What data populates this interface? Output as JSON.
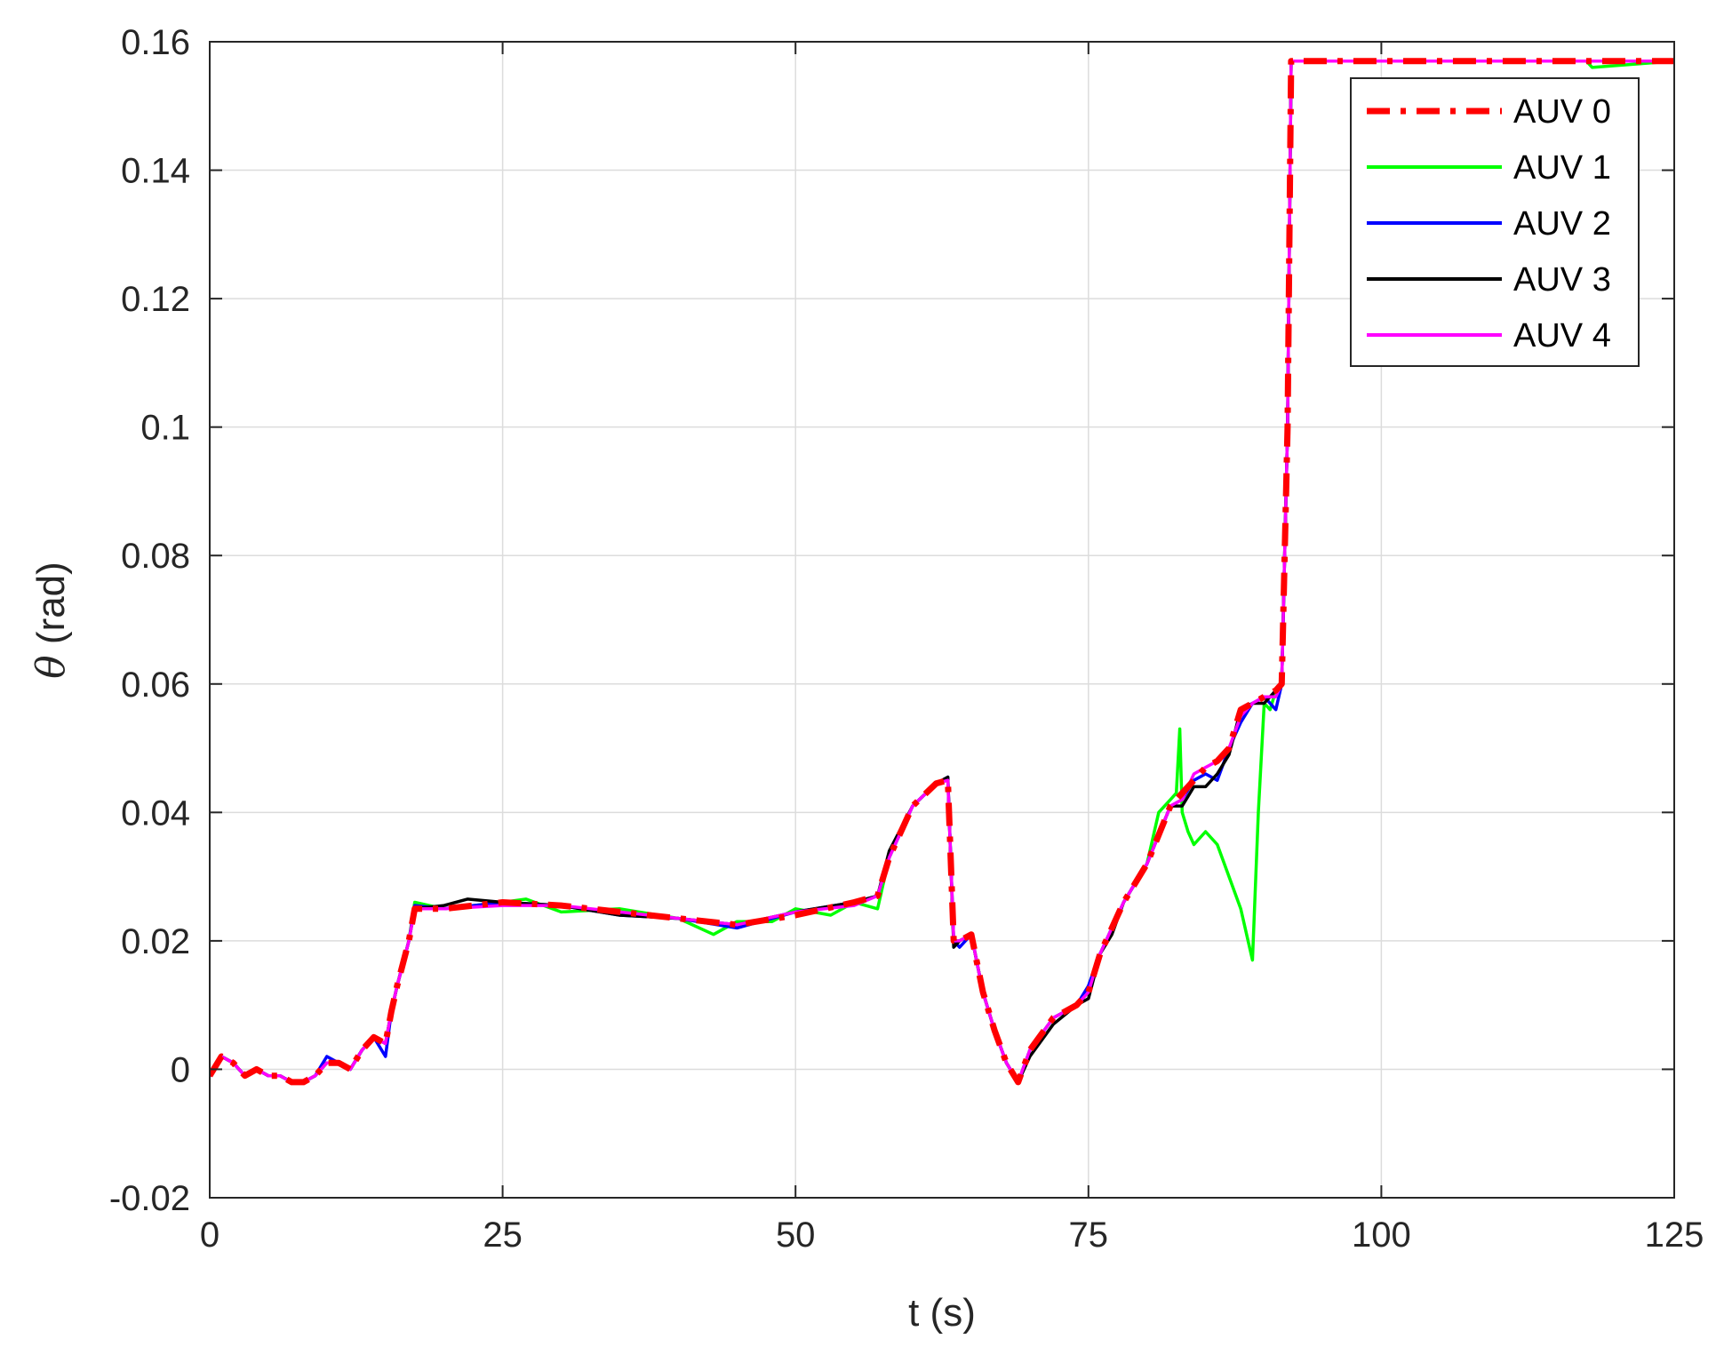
{
  "chart_data": {
    "type": "line",
    "xlabel": "t (s)",
    "ylabel_symbol": "θ",
    "ylabel_unit": " (rad)",
    "xlim": [
      0,
      125
    ],
    "ylim": [
      -0.02,
      0.16
    ],
    "xticks": [
      0,
      25,
      50,
      75,
      100,
      125
    ],
    "xtick_labels": [
      "0",
      "25",
      "50",
      "75",
      "100",
      "125"
    ],
    "yticks": [
      -0.02,
      0,
      0.02,
      0.04,
      0.06,
      0.08,
      0.1,
      0.12,
      0.14,
      0.16
    ],
    "ytick_labels": [
      "-0.02",
      "0",
      "0.02",
      "0.04",
      "0.06",
      "0.08",
      "0.1",
      "0.12",
      "0.14",
      "0.16"
    ],
    "grid": true,
    "legend_position": "top-right",
    "series": [
      {
        "name": "AUV 0",
        "color": "#ff0000",
        "style": "dashdot",
        "x": [
          0,
          1,
          2,
          3,
          4,
          5,
          6,
          7,
          8,
          9,
          10,
          11,
          12,
          13,
          14,
          15,
          15.5,
          16,
          17,
          17.5,
          20,
          25,
          30,
          35,
          40,
          45,
          50,
          55,
          57,
          58,
          60,
          62,
          63,
          63.5,
          64,
          65,
          66,
          67,
          68,
          69,
          70,
          72,
          74,
          75,
          76,
          77,
          78,
          80,
          82,
          83,
          84,
          85,
          86,
          87,
          88,
          89,
          90,
          91,
          91.5,
          92,
          92.3,
          95,
          100,
          110,
          120,
          125
        ],
        "y": [
          -0.001,
          0.002,
          0.001,
          -0.001,
          0.0,
          -0.001,
          -0.001,
          -0.002,
          -0.002,
          -0.001,
          0.001,
          0.001,
          0.0,
          0.003,
          0.005,
          0.004,
          0.009,
          0.013,
          0.02,
          0.025,
          0.025,
          0.026,
          0.0255,
          0.0245,
          0.0235,
          0.0225,
          0.024,
          0.026,
          0.027,
          0.033,
          0.041,
          0.0445,
          0.045,
          0.02,
          0.02,
          0.021,
          0.012,
          0.006,
          0.001,
          -0.002,
          0.003,
          0.008,
          0.01,
          0.012,
          0.018,
          0.022,
          0.026,
          0.032,
          0.041,
          0.043,
          0.045,
          0.047,
          0.048,
          0.05,
          0.056,
          0.057,
          0.058,
          0.059,
          0.06,
          0.1,
          0.157,
          0.157,
          0.157,
          0.157,
          0.157,
          0.157
        ]
      },
      {
        "name": "AUV 1",
        "color": "#00ff00",
        "style": "solid",
        "x": [
          0,
          1,
          2,
          3,
          4,
          5,
          6,
          7,
          8,
          9,
          10,
          11,
          12,
          13,
          14,
          15,
          15.5,
          16,
          17,
          17.5,
          20,
          25,
          27,
          30,
          35,
          40,
          43,
          45,
          48,
          50,
          53,
          55,
          57,
          58,
          60,
          62,
          63,
          63.5,
          64,
          65,
          66,
          67,
          68,
          69,
          70,
          72,
          74,
          75,
          76,
          77,
          78,
          80,
          81,
          82,
          82.5,
          82.8,
          83,
          83.5,
          84,
          85,
          86,
          87,
          88,
          88.5,
          89,
          89.5,
          90,
          90.5,
          91,
          91.5,
          92,
          92.3,
          95,
          100,
          110,
          117.5,
          118,
          125
        ],
        "y": [
          -0.001,
          0.002,
          0.001,
          -0.001,
          0.0,
          -0.001,
          -0.001,
          -0.002,
          -0.002,
          -0.001,
          0.001,
          0.001,
          0.0,
          0.003,
          0.005,
          0.004,
          0.009,
          0.013,
          0.02,
          0.026,
          0.025,
          0.026,
          0.0265,
          0.0245,
          0.025,
          0.0235,
          0.021,
          0.023,
          0.023,
          0.025,
          0.024,
          0.026,
          0.025,
          0.033,
          0.041,
          0.0445,
          0.045,
          0.02,
          0.02,
          0.021,
          0.012,
          0.006,
          0.001,
          -0.002,
          0.003,
          0.008,
          0.01,
          0.012,
          0.018,
          0.022,
          0.026,
          0.032,
          0.04,
          0.042,
          0.043,
          0.053,
          0.04,
          0.037,
          0.035,
          0.037,
          0.035,
          0.03,
          0.025,
          0.021,
          0.017,
          0.04,
          0.057,
          0.056,
          0.059,
          0.06,
          0.1,
          0.157,
          0.157,
          0.157,
          0.157,
          0.157,
          0.156,
          0.157
        ]
      },
      {
        "name": "AUV 2",
        "color": "#0000ff",
        "style": "solid",
        "x": [
          0,
          1,
          2,
          3,
          4,
          5,
          6,
          7,
          8,
          9,
          10,
          11,
          12,
          13,
          14,
          15,
          15.5,
          16,
          17,
          17.5,
          20,
          25,
          30,
          35,
          40,
          45,
          50,
          55,
          57,
          58,
          60,
          62,
          63,
          63.5,
          64,
          65,
          66,
          67,
          68,
          69,
          70,
          72,
          74,
          75,
          76,
          77,
          78,
          80,
          82,
          83,
          84,
          85,
          86,
          87,
          88,
          89,
          90,
          91,
          91.5,
          92,
          92.3,
          95,
          100,
          110,
          120,
          125
        ],
        "y": [
          -0.001,
          0.002,
          0.001,
          -0.001,
          0.0,
          -0.001,
          -0.001,
          -0.002,
          -0.002,
          -0.001,
          0.002,
          0.001,
          0.0,
          0.003,
          0.005,
          0.002,
          0.009,
          0.013,
          0.02,
          0.0255,
          0.025,
          0.026,
          0.0255,
          0.024,
          0.0235,
          0.022,
          0.0245,
          0.026,
          0.027,
          0.033,
          0.041,
          0.0445,
          0.0455,
          0.02,
          0.019,
          0.021,
          0.012,
          0.006,
          0.001,
          -0.002,
          0.003,
          0.008,
          0.01,
          0.013,
          0.018,
          0.022,
          0.026,
          0.032,
          0.041,
          0.042,
          0.045,
          0.046,
          0.045,
          0.05,
          0.054,
          0.057,
          0.058,
          0.056,
          0.06,
          0.1,
          0.157,
          0.157,
          0.157,
          0.157,
          0.157,
          0.157
        ]
      },
      {
        "name": "AUV 3",
        "color": "#000000",
        "style": "solid",
        "x": [
          0,
          1,
          2,
          3,
          4,
          5,
          6,
          7,
          8,
          9,
          10,
          11,
          12,
          13,
          14,
          15,
          15.5,
          16,
          17,
          17.5,
          20,
          22,
          25,
          30,
          35,
          40,
          45,
          50,
          55,
          57,
          58,
          60,
          62,
          63,
          63.5,
          64,
          65,
          66,
          67,
          68,
          69,
          70,
          72,
          74,
          75,
          76,
          77,
          78,
          80,
          82,
          83,
          84,
          85,
          86,
          87,
          88,
          89,
          90,
          91,
          91.5,
          92,
          92.3,
          95,
          100,
          110,
          120,
          125
        ],
        "y": [
          -0.001,
          0.002,
          0.001,
          -0.001,
          0.0,
          -0.001,
          -0.001,
          -0.002,
          -0.002,
          -0.001,
          0.001,
          0.001,
          0.0,
          0.003,
          0.005,
          0.004,
          0.009,
          0.013,
          0.02,
          0.025,
          0.0255,
          0.0265,
          0.026,
          0.0255,
          0.024,
          0.0235,
          0.0225,
          0.0245,
          0.026,
          0.027,
          0.034,
          0.041,
          0.0445,
          0.0455,
          0.019,
          0.02,
          0.021,
          0.012,
          0.006,
          0.001,
          -0.002,
          0.002,
          0.007,
          0.01,
          0.011,
          0.018,
          0.021,
          0.026,
          0.032,
          0.041,
          0.041,
          0.044,
          0.044,
          0.046,
          0.049,
          0.056,
          0.057,
          0.057,
          0.059,
          0.06,
          0.1,
          0.157,
          0.157,
          0.157,
          0.157,
          0.157,
          0.157
        ]
      },
      {
        "name": "AUV 4",
        "color": "#ff00ff",
        "style": "solid",
        "x": [
          0,
          1,
          2,
          3,
          4,
          5,
          6,
          7,
          8,
          9,
          10,
          11,
          12,
          13,
          14,
          15,
          15.5,
          16,
          17,
          17.5,
          20,
          25,
          30,
          35,
          40,
          45,
          50,
          55,
          57,
          58,
          60,
          62,
          63,
          63.5,
          64,
          65,
          66,
          67,
          68,
          69,
          70,
          72,
          74,
          75,
          76,
          77,
          78,
          80,
          82,
          83,
          84,
          85,
          86,
          87,
          88,
          89,
          90,
          91,
          91.5,
          92,
          92.3,
          95,
          100,
          110,
          120,
          125
        ],
        "y": [
          -0.001,
          0.002,
          0.001,
          -0.001,
          0.0,
          -0.001,
          -0.001,
          -0.002,
          -0.002,
          -0.001,
          0.001,
          0.001,
          0.0,
          0.003,
          0.005,
          0.004,
          0.009,
          0.013,
          0.02,
          0.025,
          0.025,
          0.0255,
          0.0255,
          0.0245,
          0.0235,
          0.0225,
          0.0245,
          0.0255,
          0.027,
          0.033,
          0.041,
          0.0445,
          0.045,
          0.02,
          0.02,
          0.021,
          0.012,
          0.006,
          0.001,
          -0.002,
          0.003,
          0.008,
          0.01,
          0.012,
          0.018,
          0.022,
          0.026,
          0.032,
          0.041,
          0.042,
          0.046,
          0.047,
          0.048,
          0.05,
          0.055,
          0.057,
          0.058,
          0.058,
          0.06,
          0.1,
          0.157,
          0.157,
          0.157,
          0.157,
          0.157,
          0.157
        ]
      }
    ]
  }
}
